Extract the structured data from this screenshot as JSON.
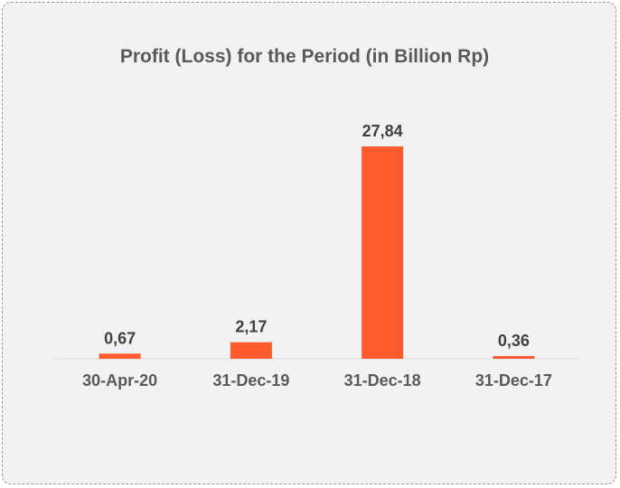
{
  "chart_data": {
    "type": "bar",
    "title": "Profit (Loss) for the Period (in Billion Rp)",
    "categories": [
      "30-Apr-20",
      "31-Dec-19",
      "31-Dec-18",
      "31-Dec-17"
    ],
    "values": [
      0.67,
      2.17,
      27.84,
      0.36
    ],
    "data_labels": [
      "0,67",
      "2,17",
      "27,84",
      "0,36"
    ],
    "ylim": [
      0,
      30
    ],
    "grid": false,
    "legend": "none",
    "bar_color": "#ff5b2e",
    "axis_color": "#d9d9d9"
  }
}
